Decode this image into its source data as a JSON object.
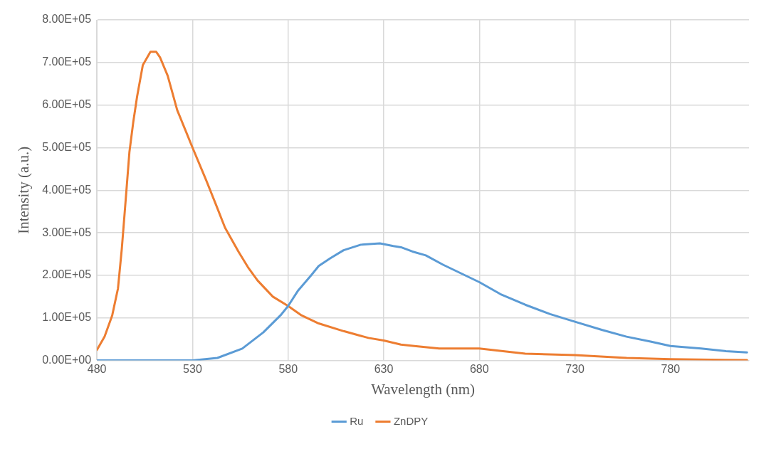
{
  "chart_data": {
    "type": "line",
    "xlabel": "Wavelength (nm)",
    "ylabel": "Intensity (a.u.)",
    "xlim": [
      480,
      821
    ],
    "xticks": [
      480,
      530,
      580,
      630,
      680,
      730,
      780
    ],
    "ylim": [
      0,
      800000
    ],
    "yticks": [
      {
        "value": 0,
        "label": "0.00E+00"
      },
      {
        "value": 100000,
        "label": "1.00E+05"
      },
      {
        "value": 200000,
        "label": "2.00E+05"
      },
      {
        "value": 300000,
        "label": "3.00E+05"
      },
      {
        "value": 400000,
        "label": "4.00E+05"
      },
      {
        "value": 500000,
        "label": "5.00E+05"
      },
      {
        "value": 600000,
        "label": "6.00E+05"
      },
      {
        "value": 700000,
        "label": "7.00E+05"
      },
      {
        "value": 800000,
        "label": "8.00E+05"
      }
    ],
    "grid": true,
    "legend": "bottom",
    "marker": "none",
    "line_style": "solid",
    "series": [
      {
        "name": "Ru",
        "color": "#5b9bd5",
        "x": [
          480,
          500,
          520,
          530,
          543,
          556,
          567,
          576,
          580,
          585,
          592,
          596,
          602,
          609,
          618,
          628,
          635,
          639,
          645,
          652,
          661,
          680,
          691,
          704,
          717,
          730,
          744,
          757,
          770,
          780,
          796,
          809,
          820
        ],
        "values": [
          0,
          0,
          0,
          0,
          6000,
          28000,
          66000,
          106000,
          128000,
          163000,
          200000,
          222000,
          240000,
          259000,
          272000,
          275000,
          269000,
          266000,
          256000,
          247000,
          225000,
          184000,
          156000,
          131000,
          109000,
          91000,
          72000,
          56000,
          44000,
          34000,
          28000,
          22000,
          19000
        ]
      },
      {
        "name": "ZnDPY",
        "color": "#ed7d31",
        "x": [
          480,
          484,
          488,
          491,
          493,
          495,
          497,
          499,
          501,
          504,
          508,
          511,
          513,
          517,
          522,
          526,
          530,
          537,
          542,
          547,
          554,
          559,
          564,
          572,
          580,
          587,
          596,
          609,
          622,
          630,
          639,
          646,
          659,
          680,
          704,
          730,
          757,
          780,
          820
        ],
        "values": [
          25000,
          56000,
          106000,
          169000,
          262000,
          375000,
          490000,
          560000,
          620000,
          694000,
          725000,
          725000,
          712000,
          669000,
          588000,
          544000,
          500000,
          425000,
          369000,
          312000,
          256000,
          219000,
          188000,
          150000,
          128000,
          106000,
          87000,
          69000,
          53000,
          47000,
          37500,
          34000,
          28000,
          28000,
          16000,
          12500,
          6000,
          3000,
          1000
        ]
      }
    ]
  }
}
